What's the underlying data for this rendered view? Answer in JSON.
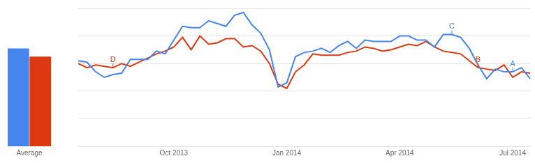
{
  "chart_data": [
    {
      "type": "bar",
      "categories": [
        "Average"
      ],
      "series": [
        {
          "color": "#4684ee",
          "values": [
            71
          ]
        },
        {
          "color": "#dc3912",
          "values": [
            65
          ]
        }
      ],
      "ylim": [
        0,
        100
      ],
      "yticks": [
        0,
        20,
        40,
        60,
        80,
        100
      ],
      "grid": false,
      "tick_labels": "x"
    },
    {
      "type": "line",
      "categories": [
        null,
        null,
        null,
        null,
        null,
        null,
        null,
        null,
        null,
        null,
        null,
        "Oct 2013",
        null,
        null,
        null,
        null,
        null,
        null,
        null,
        null,
        null,
        null,
        null,
        null,
        "Jan 2014",
        null,
        null,
        null,
        null,
        null,
        null,
        null,
        null,
        null,
        null,
        null,
        null,
        "Apr 2014",
        null,
        null,
        null,
        null,
        null,
        null,
        null,
        null,
        null,
        null,
        null,
        null,
        "Jul 2014",
        null,
        null
      ],
      "series": [
        {
          "color": "#4684ee",
          "values": [
            62,
            61,
            54,
            50,
            52,
            53,
            63,
            63,
            63,
            69,
            67,
            77,
            87,
            86,
            86,
            91,
            89,
            87,
            95,
            97,
            88,
            82,
            70,
            43,
            46,
            65,
            68,
            69,
            71,
            68,
            73,
            76,
            71,
            77,
            76,
            76,
            76,
            80,
            80,
            77,
            77,
            72,
            81,
            81,
            79,
            71,
            59,
            49,
            56,
            54,
            54,
            57,
            49
          ]
        },
        {
          "color": "#dc3912",
          "values": [
            60,
            57,
            59,
            58,
            57,
            60,
            58,
            61,
            64,
            67,
            69,
            72,
            79,
            70,
            80,
            74,
            75,
            78,
            78,
            72,
            73,
            69,
            60,
            45,
            42,
            54,
            59,
            67,
            66,
            66,
            66,
            68,
            69,
            72,
            71,
            69,
            70,
            72,
            74,
            73,
            76,
            72,
            69,
            68,
            67,
            62,
            57,
            56,
            55,
            59,
            50,
            54,
            53
          ]
        }
      ],
      "annotations": [
        {
          "text": "D",
          "series": 1,
          "index": 4
        },
        {
          "text": "C",
          "series": 0,
          "index": 43
        },
        {
          "text": "B",
          "series": 1,
          "index": 46
        },
        {
          "text": "A",
          "series": 0,
          "index": 50
        }
      ],
      "ylim": [
        0,
        100
      ],
      "yticks": [
        0,
        20,
        40,
        60,
        80,
        100
      ],
      "grid": true,
      "tick_labels": "x"
    }
  ]
}
